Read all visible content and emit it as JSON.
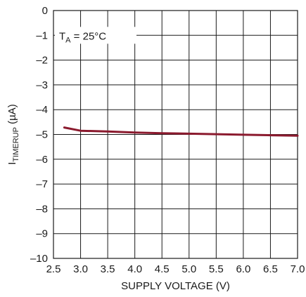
{
  "chart_data": {
    "type": "line",
    "title": "",
    "xlabel": "SUPPLY VOLTAGE (V)",
    "ylabel": {
      "base": "I",
      "sub": "TIMERUP",
      "unit": " (µA)"
    },
    "annotation": {
      "base": "T",
      "sub": "A",
      "rest": " = 25°C"
    },
    "xlim": [
      2.5,
      7.0
    ],
    "ylim": [
      -10,
      0
    ],
    "xticks": [
      2.5,
      3.0,
      3.5,
      4.0,
      4.5,
      5.0,
      5.5,
      6.0,
      6.5,
      7.0
    ],
    "xtick_labels": [
      "2.5",
      "3.0",
      "3.5",
      "4.0",
      "4.5",
      "5.0",
      "5.5",
      "6.0",
      "6.5",
      "7.0"
    ],
    "yticks": [
      0,
      -1,
      -2,
      -3,
      -4,
      -5,
      -6,
      -7,
      -8,
      -9,
      -10
    ],
    "ytick_labels": [
      "0",
      "–1",
      "–2",
      "–3",
      "–4",
      "–5",
      "–6",
      "–7",
      "–8",
      "–9",
      "–10"
    ],
    "grid": true,
    "series": [
      {
        "color": "#8b1a2e",
        "x": [
          2.7,
          3.0,
          3.5,
          4.0,
          4.5,
          5.0,
          5.5,
          6.0,
          6.5,
          7.0
        ],
        "y": [
          -4.72,
          -4.85,
          -4.88,
          -4.92,
          -4.95,
          -4.97,
          -4.99,
          -5.01,
          -5.03,
          -5.05
        ]
      }
    ]
  }
}
